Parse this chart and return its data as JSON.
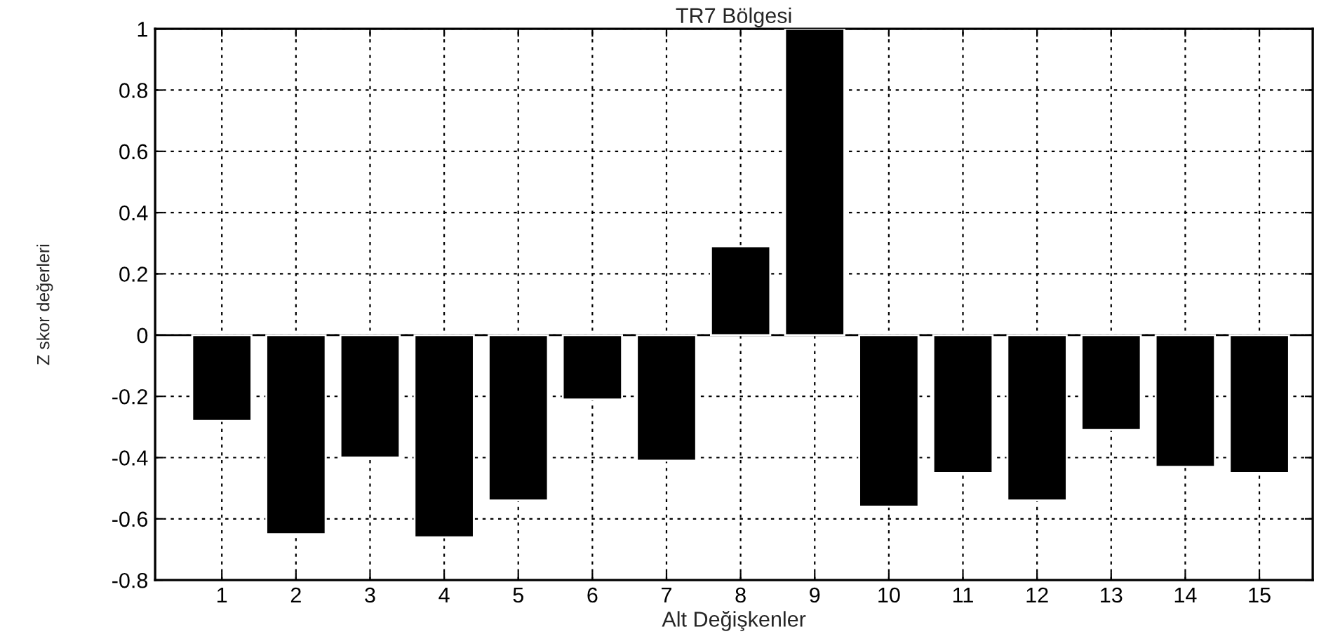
{
  "chart_data": {
    "type": "bar",
    "title": "TR7 Bölgesi",
    "xlabel": "Alt Değişkenler",
    "ylabel": "Z skor değerleri",
    "categories": [
      "1",
      "2",
      "3",
      "4",
      "5",
      "6",
      "7",
      "8",
      "9",
      "10",
      "11",
      "12",
      "13",
      "14",
      "15"
    ],
    "values": [
      -0.28,
      -0.65,
      -0.4,
      -0.66,
      -0.54,
      -0.21,
      -0.41,
      0.29,
      1.0,
      -0.56,
      -0.45,
      -0.54,
      -0.31,
      -0.43,
      -0.45
    ],
    "color": "#000000",
    "ylim": [
      -0.8,
      1
    ],
    "yticks": [
      -0.8,
      -0.6,
      -0.4,
      -0.2,
      0,
      0.2,
      0.4,
      0.6,
      0.8,
      1
    ],
    "grid": true
  }
}
